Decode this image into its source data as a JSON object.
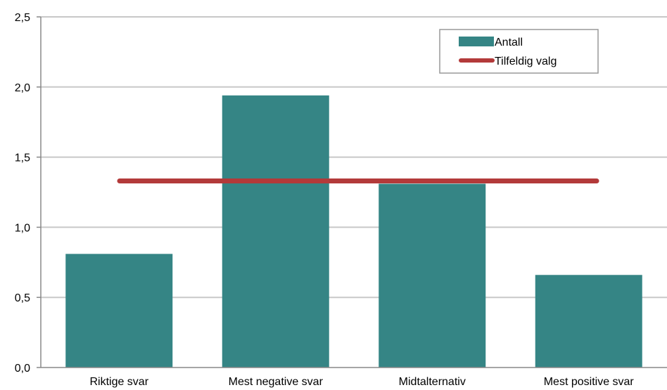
{
  "chart_data": {
    "type": "bar",
    "categories": [
      "Riktige svar",
      "Mest negative svar",
      "Midtalternativ",
      "Mest positive svar"
    ],
    "series": [
      {
        "name": "Antall",
        "type": "bar",
        "values": [
          0.81,
          1.94,
          1.31,
          0.66
        ]
      },
      {
        "name": "Tilfeldig valg",
        "type": "line",
        "values": [
          1.33,
          1.33,
          1.33,
          1.33
        ]
      }
    ],
    "y_ticks": [
      "0,0",
      "0,5",
      "1,0",
      "1,5",
      "2,0",
      "2,5"
    ],
    "ylim": [
      0,
      2.5
    ],
    "grid": true,
    "legend_position": "top-right",
    "colors": {
      "bar": "#358585",
      "line": "#b33a3a",
      "grid": "#c8c8c8",
      "axis": "#888888"
    }
  }
}
